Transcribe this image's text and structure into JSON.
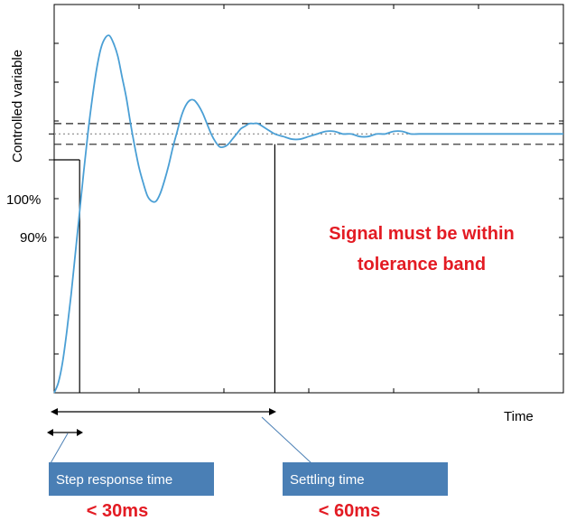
{
  "chart_data": {
    "type": "line",
    "title": "",
    "xlabel": "Time",
    "ylabel": "Controlled variable",
    "y_ticks": [
      {
        "label": "100%",
        "value": 100
      },
      {
        "label": "90%",
        "value": 90
      }
    ],
    "tolerance_band": [
      96,
      104
    ],
    "xlim": [
      0,
      60
    ],
    "ylim": [
      0,
      150
    ],
    "grid": false,
    "series": [
      {
        "name": "",
        "color": "#4a9fd5",
        "x": [
          0,
          0.5,
          1,
          1.5,
          2,
          2.5,
          3,
          3.5,
          4,
          4.5,
          5,
          5.5,
          6,
          6.5,
          7,
          7.5,
          8,
          8.5,
          9,
          9.5,
          10,
          10.5,
          11,
          11.5,
          12,
          12.5,
          13,
          13.5,
          14,
          14.5,
          15,
          15.5,
          16,
          16.5,
          17,
          17.5,
          18,
          18.5,
          19,
          19.5,
          20,
          20.5,
          21,
          21.5,
          22,
          22.5,
          23,
          23.5,
          24,
          25,
          26,
          27,
          28,
          29,
          30,
          31,
          32,
          33,
          34,
          35,
          36,
          37,
          38,
          39,
          40,
          41,
          42,
          43,
          44,
          45,
          46,
          47,
          48,
          49,
          50,
          51,
          52,
          53,
          54,
          55,
          56,
          57,
          58,
          59,
          60
        ],
        "y": [
          0,
          4,
          12,
          24,
          38,
          54,
          70,
          86,
          101,
          114,
          125,
          133,
          137,
          138,
          135,
          130,
          122,
          114,
          104,
          95,
          87,
          81,
          76,
          74,
          74,
          77,
          82,
          88,
          95,
          101,
          107,
          111,
          113,
          113,
          111,
          108,
          104,
          100,
          97,
          95,
          95,
          96,
          98,
          100,
          102,
          103,
          104,
          104,
          104,
          102,
          100,
          99,
          98,
          98,
          99,
          100,
          101,
          101,
          100,
          100,
          99,
          99,
          100,
          100,
          101,
          101,
          100,
          100,
          100,
          100,
          100,
          100,
          100,
          100,
          100,
          100,
          100,
          100,
          100,
          100,
          100,
          100,
          100,
          100,
          100
        ]
      }
    ],
    "markers": [
      {
        "label": "90%",
        "y": 90,
        "x": 3
      },
      {
        "label": "100%",
        "y": 96,
        "x": 26
      }
    ],
    "annotations": {
      "band_note": [
        "Signal must be within",
        "tolerance band"
      ],
      "step_box": "Step response time",
      "step_value": "< 30ms",
      "settling_box": "Settling time",
      "settling_value": "< 60ms"
    }
  }
}
